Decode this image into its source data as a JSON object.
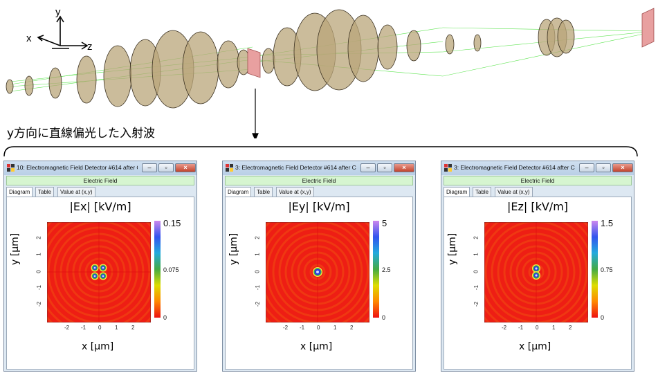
{
  "axes_labels": {
    "y": "y",
    "x": "x",
    "z": "z"
  },
  "caption": "y方向に直線偏光した入射波",
  "windows": [
    {
      "title": "10: Electromagnetic Field Detector #614 after C...",
      "field_bar": "Electric Field",
      "tabs": [
        "Diagram",
        "Table",
        "Value at (x,y)"
      ],
      "plot_title": "|Ex| [kV/m]",
      "y_label": "y [µm]",
      "x_label": "x [µm]",
      "x_ticks": [
        "-2",
        "-1",
        "0",
        "1",
        "2"
      ],
      "y_ticks": [
        "2",
        "1",
        "0",
        "-1",
        "-2"
      ],
      "colorbar": {
        "max": "0.15",
        "mid": "0.075",
        "min": "0"
      },
      "pattern": "ex"
    },
    {
      "title": "3: Electromagnetic Field Detector #614 after Co...",
      "field_bar": "Electric Field",
      "tabs": [
        "Diagram",
        "Table",
        "Value at (x,y)"
      ],
      "plot_title": "|Ey| [kV/m]",
      "y_label": "y [µm]",
      "x_label": "x [µm]",
      "x_ticks": [
        "-2",
        "-1",
        "0",
        "1",
        "2"
      ],
      "y_ticks": [
        "2",
        "1",
        "0",
        "-1",
        "-2"
      ],
      "colorbar": {
        "max": "5",
        "mid": "2.5",
        "min": "0"
      },
      "pattern": "ey"
    },
    {
      "title": "3: Electromagnetic Field Detector #614 after Co...",
      "field_bar": "Electric Field",
      "tabs": [
        "Diagram",
        "Table",
        "Value at (x,y)"
      ],
      "plot_title": "|Ez| [kV/m]",
      "y_label": "y [µm]",
      "x_label": "x [µm]",
      "x_ticks": [
        "-2",
        "-1",
        "0",
        "1",
        "2"
      ],
      "y_ticks": [
        "2",
        "1",
        "0",
        "-1",
        "-2"
      ],
      "colorbar": {
        "max": "1.5",
        "mid": "0.75",
        "min": "0"
      },
      "pattern": "ez"
    }
  ],
  "colors": {
    "lens_fill": "#b9a57a",
    "lens_stroke": "#3a3020",
    "ray": "#33dd22",
    "detector": "#e8a0a0",
    "field_bg": "#ee1e14",
    "ring": "#f04a10"
  }
}
